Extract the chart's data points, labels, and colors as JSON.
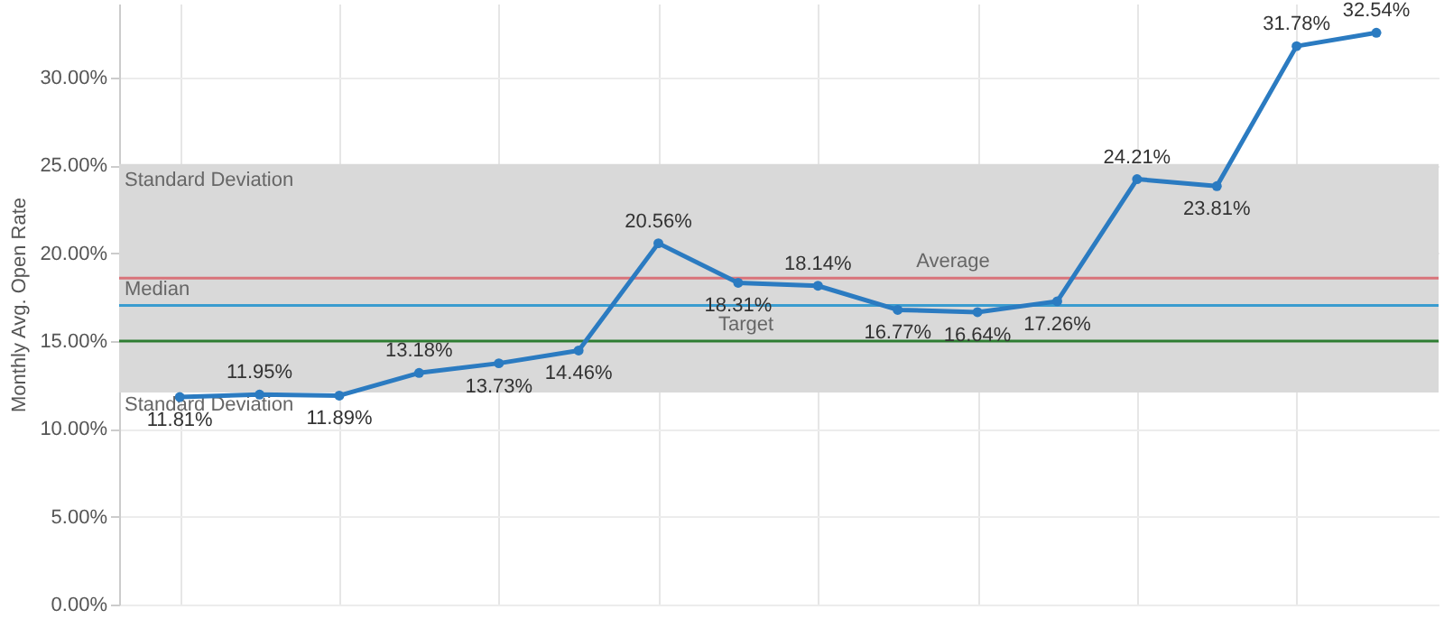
{
  "chart_data": {
    "type": "line",
    "ylabel": "Monthly Avg. Open Rate",
    "categories": [
      null,
      null,
      null,
      null,
      null,
      null,
      null,
      null,
      null,
      null,
      null,
      null,
      null,
      null,
      null,
      null
    ],
    "series": [
      {
        "color": "#2b7bc1",
        "values": [
          11.81,
          11.95,
          11.89,
          13.18,
          13.73,
          14.46,
          20.56,
          18.31,
          18.14,
          16.77,
          16.64,
          17.26,
          24.21,
          23.81,
          31.78,
          32.54
        ],
        "value_labels": [
          "11.81%",
          "11.95%",
          "11.89%",
          "13.18%",
          "13.73%",
          "14.46%",
          "20.56%",
          "18.31%",
          "18.14%",
          "16.77%",
          "16.64%",
          "17.26%",
          "24.21%",
          "23.81%",
          "31.78%",
          "32.54%"
        ]
      }
    ],
    "ylim": [
      0,
      34.2
    ],
    "yticks": [
      {
        "value": 0,
        "label": "0.00%"
      },
      {
        "value": 5,
        "label": "5.00%"
      },
      {
        "value": 10,
        "label": "10.00%"
      },
      {
        "value": 15,
        "label": "15.00%"
      },
      {
        "value": 20,
        "label": "20.00%"
      },
      {
        "value": 25,
        "label": "25.00%"
      },
      {
        "value": 30,
        "label": "30.00%"
      }
    ],
    "bands": [
      {
        "axis": "y",
        "from": 12.07,
        "to": 25.07,
        "label": "Standard Deviation",
        "color": "#d9d9d9"
      }
    ],
    "ref_lines": [
      {
        "axis": "y",
        "value": 18.57,
        "label": "Average",
        "color": "#d9737a"
      },
      {
        "axis": "y",
        "value": 17.02,
        "label": "Median",
        "color": "#3a9ccf"
      },
      {
        "axis": "y",
        "value": 15,
        "label": "Target",
        "color": "#2e7d32"
      }
    ],
    "annotations": [
      {
        "text": "Standard Deviation",
        "y": 12.07
      }
    ],
    "grid": true,
    "marker": "circle",
    "line_style": "solid"
  }
}
